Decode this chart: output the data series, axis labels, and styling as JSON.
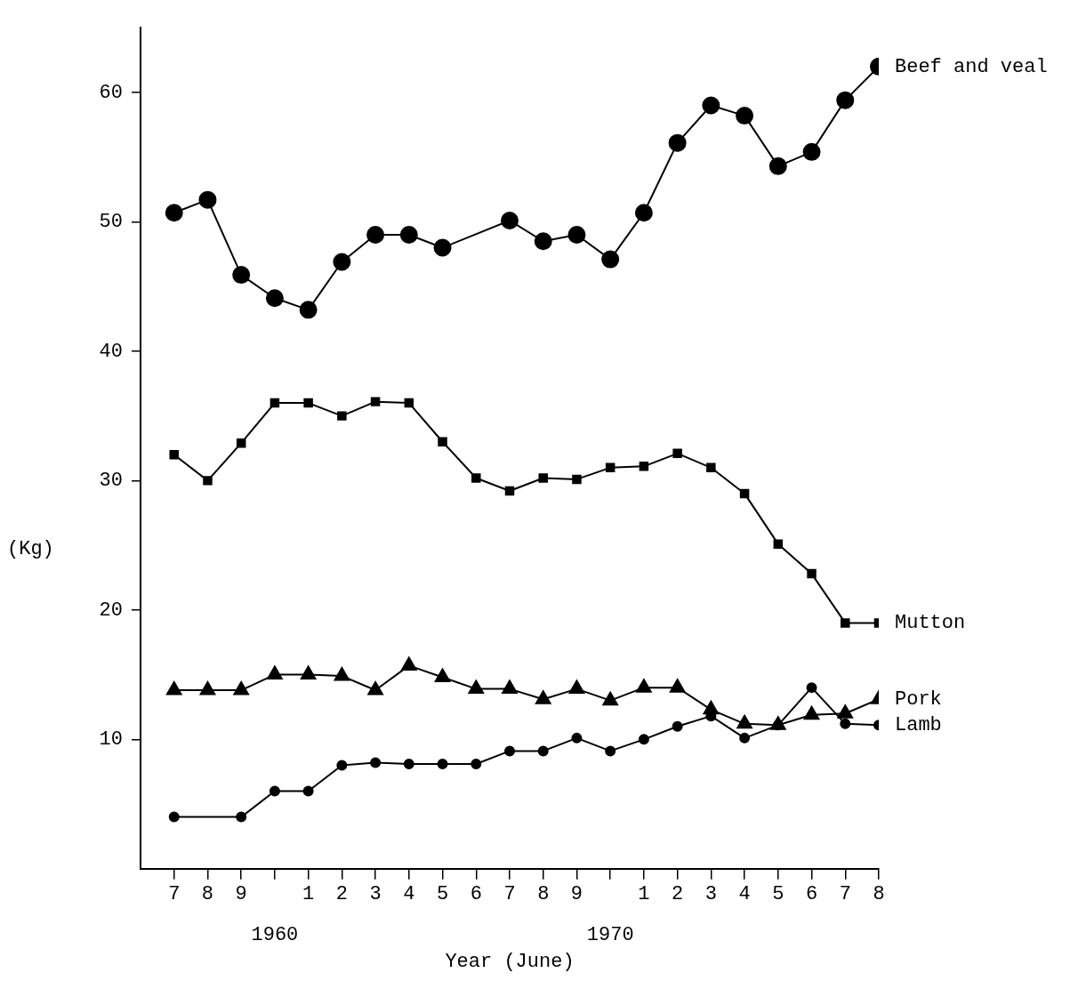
{
  "chart_data": {
    "type": "line",
    "xlabel": "Year (June)",
    "ylabel": "(Kg)",
    "categories": [
      "7",
      "8",
      "9",
      null,
      "1",
      "2",
      "3",
      "4",
      "5",
      "6",
      "7",
      "8",
      "9",
      null,
      "1",
      "2",
      "3",
      "4",
      "5",
      "6",
      "7",
      "8"
    ],
    "annotations": [
      "1960",
      "1970"
    ],
    "ylim": [
      0,
      65
    ],
    "yticks": [
      10,
      20,
      30,
      40,
      50,
      60
    ],
    "grid": false,
    "legend": false,
    "line_style": "solid",
    "series": [
      {
        "name": "Beef and veal",
        "color": "#000000",
        "marker": "circle",
        "values": [
          50.7,
          51.7,
          45.9,
          44.1,
          43.2,
          46.9,
          49,
          49,
          48,
          null,
          50.1,
          48.5,
          49,
          47.1,
          50.7,
          56.1,
          59,
          58.2,
          54.3,
          55.4,
          59.4,
          62
        ]
      },
      {
        "name": "Mutton",
        "color": "#000000",
        "marker": "square",
        "values": [
          32,
          30,
          32.9,
          36,
          36,
          35,
          36.1,
          36,
          33,
          30.2,
          29.2,
          30.2,
          30.1,
          31,
          31.1,
          32.1,
          31,
          29,
          25.1,
          22.8,
          19,
          19
        ]
      },
      {
        "name": "Pork",
        "color": "#000000",
        "marker": "triangle",
        "values": [
          13.8,
          13.8,
          13.8,
          15,
          15,
          14.9,
          13.8,
          15.7,
          14.8,
          13.9,
          13.9,
          13.1,
          13.9,
          13,
          14,
          14,
          12.3,
          11.2,
          11.1,
          11.9,
          12,
          13.1
        ]
      },
      {
        "name": "Lamb",
        "color": "#000000",
        "marker": "circle",
        "values": [
          4,
          null,
          4,
          6,
          6,
          8,
          8.2,
          8.1,
          8.1,
          8.1,
          9.1,
          9.1,
          10.1,
          9.1,
          10,
          11,
          11.8,
          10.1,
          11.1,
          14,
          11.2,
          11.1
        ]
      }
    ]
  }
}
